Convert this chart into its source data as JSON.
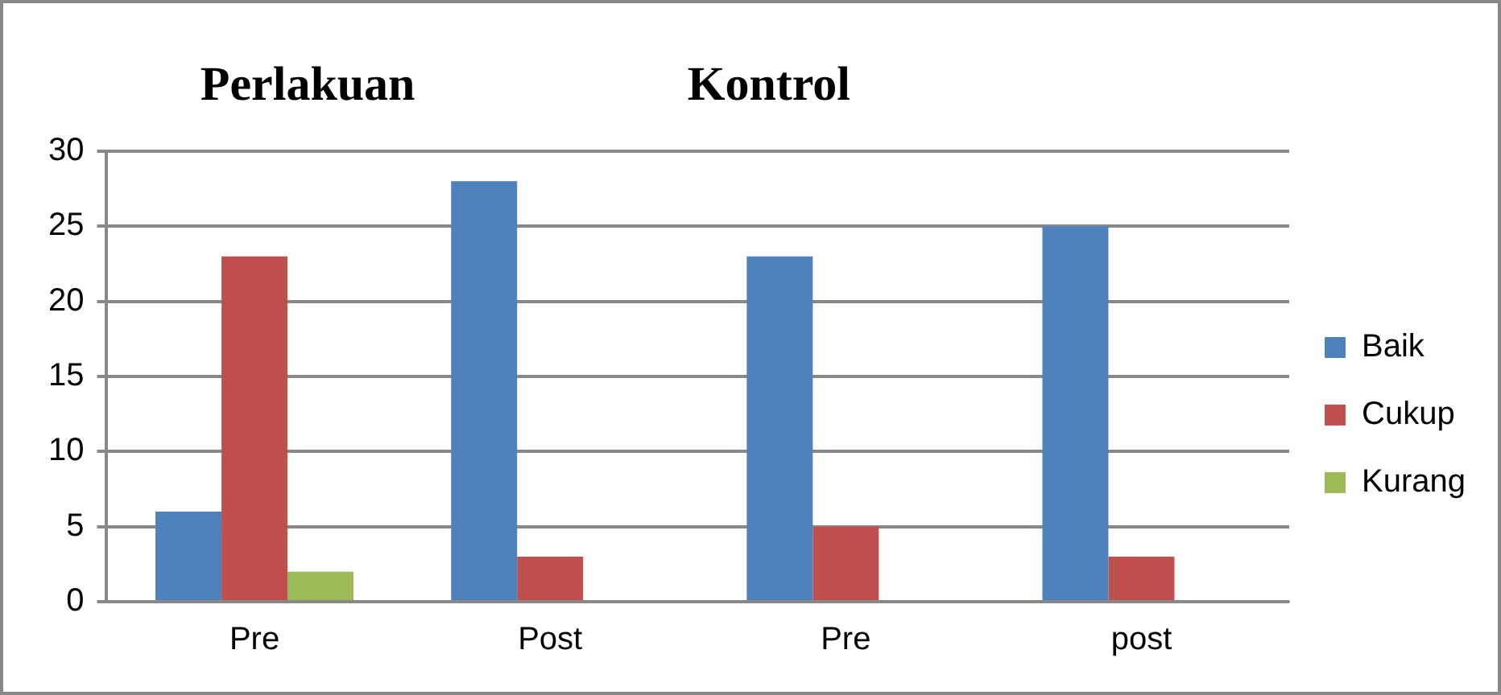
{
  "chart_data": {
    "type": "bar",
    "categories": [
      "Pre",
      "Post",
      "Pre",
      "post"
    ],
    "series": [
      {
        "name": "Baik",
        "color": "#4f81bd",
        "values": [
          6,
          28,
          23,
          25
        ]
      },
      {
        "name": "Cukup",
        "color": "#c0504d",
        "values": [
          23,
          3,
          5,
          3
        ]
      },
      {
        "name": "Kurang",
        "color": "#9bbb59",
        "values": [
          2,
          null,
          null,
          null
        ]
      }
    ],
    "ylim": [
      0,
      30
    ],
    "yticks": [
      0,
      5,
      10,
      15,
      20,
      25,
      30
    ],
    "grid": "y",
    "legend": "right",
    "annotations": [
      "Perlakuan",
      "Kontrol"
    ]
  }
}
